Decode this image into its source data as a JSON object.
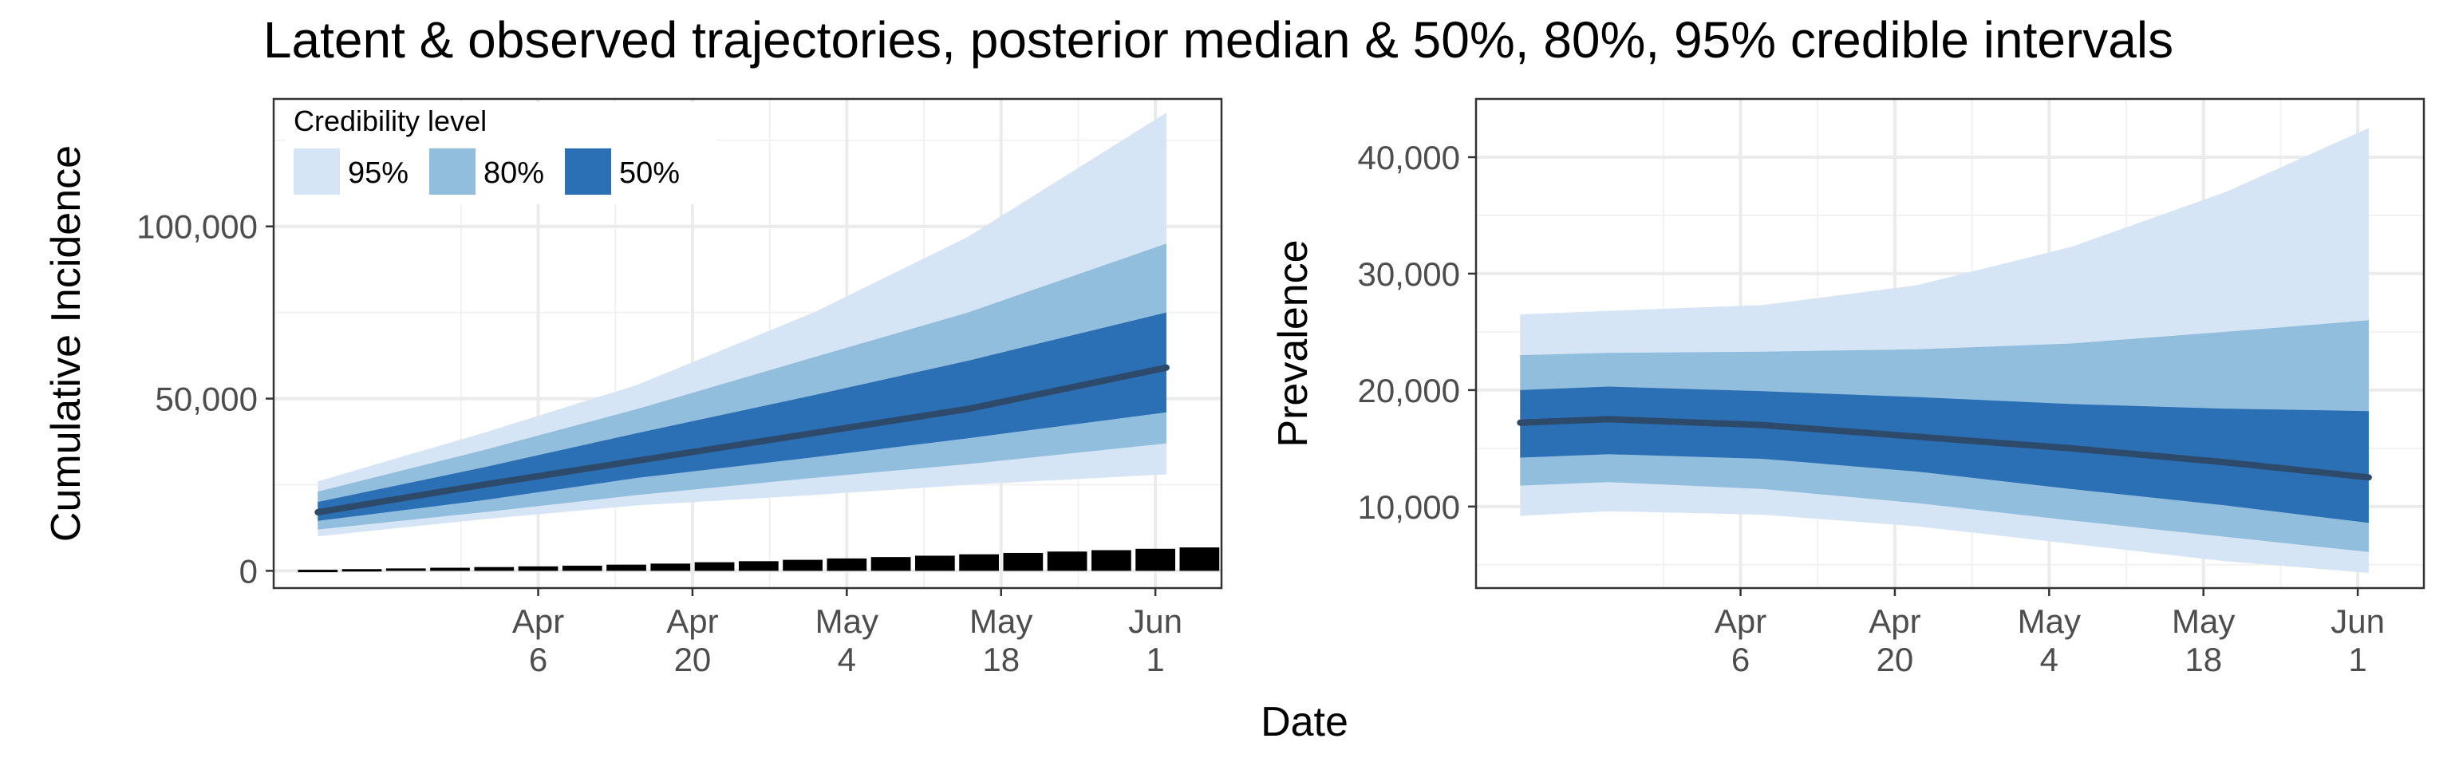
{
  "title": "Latent & observed trajectories, posterior median & 50%, 80%, 95% credible intervals",
  "xlabel": "Date",
  "legend": {
    "title": "Credibility level",
    "items": [
      {
        "label": "95%",
        "color": "#d6e5f5"
      },
      {
        "label": "80%",
        "color": "#92bedd"
      },
      {
        "label": "50%",
        "color": "#2b6fb5"
      }
    ]
  },
  "colors": {
    "median": "#2e4a6b",
    "observed": "#000000",
    "panel_border": "#333333",
    "grid": "#ebebeb"
  },
  "chart_data": [
    {
      "type": "area",
      "name": "left-panel",
      "ylabel": "Cumulative Incidence",
      "x_ticks": [
        {
          "date": "2020-04-06",
          "label": [
            "Apr",
            "6"
          ]
        },
        {
          "date": "2020-04-20",
          "label": [
            "Apr",
            "20"
          ]
        },
        {
          "date": "2020-05-04",
          "label": [
            "May",
            "4"
          ]
        },
        {
          "date": "2020-05-18",
          "label": [
            "May",
            "18"
          ]
        },
        {
          "date": "2020-06-01",
          "label": [
            "Jun",
            "1"
          ]
        }
      ],
      "xlim": [
        "2020-03-13",
        "2020-06-07"
      ],
      "y_ticks": [
        {
          "value": 0,
          "label": "0"
        },
        {
          "value": 50000,
          "label": "50,000"
        },
        {
          "value": 100000,
          "label": "100,000"
        }
      ],
      "ylim": [
        -5000,
        137000
      ],
      "grid": true,
      "legend_position": "top-left",
      "x": [
        "2020-03-17",
        "2020-04-01",
        "2020-04-15",
        "2020-05-01",
        "2020-05-15",
        "2020-06-02"
      ],
      "median": [
        17000,
        25000,
        32000,
        40000,
        47000,
        59000
      ],
      "ci95": {
        "lower": [
          10000,
          15000,
          19000,
          22000,
          25000,
          28000
        ],
        "upper": [
          26000,
          40000,
          54000,
          75000,
          97000,
          133000
        ]
      },
      "ci80": {
        "lower": [
          12000,
          17000,
          22000,
          27000,
          31000,
          37000
        ],
        "upper": [
          23000,
          35000,
          47000,
          62000,
          75000,
          95000
        ]
      },
      "ci50": {
        "lower": [
          14500,
          20500,
          27000,
          33000,
          38500,
          46000
        ],
        "upper": [
          20000,
          30000,
          40000,
          51000,
          61000,
          75000
        ]
      },
      "observed": {
        "x": [
          "2020-03-17",
          "2020-03-21",
          "2020-03-25",
          "2020-03-29",
          "2020-04-02",
          "2020-04-06",
          "2020-04-10",
          "2020-04-14",
          "2020-04-18",
          "2020-04-22",
          "2020-04-26",
          "2020-04-30",
          "2020-05-04",
          "2020-05-08",
          "2020-05-12",
          "2020-05-16",
          "2020-05-20",
          "2020-05-24",
          "2020-05-28",
          "2020-06-01",
          "2020-06-05"
        ],
        "values": [
          300,
          500,
          700,
          900,
          1100,
          1300,
          1500,
          1800,
          2100,
          2500,
          2800,
          3200,
          3600,
          4000,
          4400,
          4800,
          5200,
          5600,
          6000,
          6400,
          6800
        ]
      }
    },
    {
      "type": "area",
      "name": "right-panel",
      "ylabel": "Prevalence",
      "x_ticks": [
        {
          "date": "2020-04-06",
          "label": [
            "Apr",
            "6"
          ]
        },
        {
          "date": "2020-04-20",
          "label": [
            "Apr",
            "20"
          ]
        },
        {
          "date": "2020-05-04",
          "label": [
            "May",
            "4"
          ]
        },
        {
          "date": "2020-05-18",
          "label": [
            "May",
            "18"
          ]
        },
        {
          "date": "2020-06-01",
          "label": [
            "Jun",
            "1"
          ]
        }
      ],
      "xlim": [
        "2020-03-13",
        "2020-06-07"
      ],
      "y_ticks": [
        {
          "value": 10000,
          "label": "10,000"
        },
        {
          "value": 20000,
          "label": "20,000"
        },
        {
          "value": 30000,
          "label": "30,000"
        },
        {
          "value": 40000,
          "label": "40,000"
        }
      ],
      "ylim": [
        3000,
        45000
      ],
      "grid": true,
      "x": [
        "2020-03-17",
        "2020-03-25",
        "2020-04-08",
        "2020-04-22",
        "2020-05-06",
        "2020-05-20",
        "2020-06-02"
      ],
      "median": [
        17200,
        17500,
        17000,
        16000,
        15000,
        13800,
        12500
      ],
      "ci95": {
        "lower": [
          9200,
          9600,
          9300,
          8300,
          6800,
          5300,
          4300
        ],
        "upper": [
          26500,
          26800,
          27300,
          29000,
          32300,
          37000,
          42500
        ]
      },
      "ci80": {
        "lower": [
          11800,
          12100,
          11500,
          10300,
          8800,
          7400,
          6100
        ],
        "upper": [
          23000,
          23200,
          23300,
          23500,
          24000,
          25000,
          26000
        ]
      },
      "ci50": {
        "lower": [
          14200,
          14500,
          14100,
          13000,
          11500,
          10100,
          8600
        ],
        "upper": [
          20000,
          20300,
          19900,
          19400,
          18800,
          18400,
          18200
        ]
      }
    }
  ]
}
